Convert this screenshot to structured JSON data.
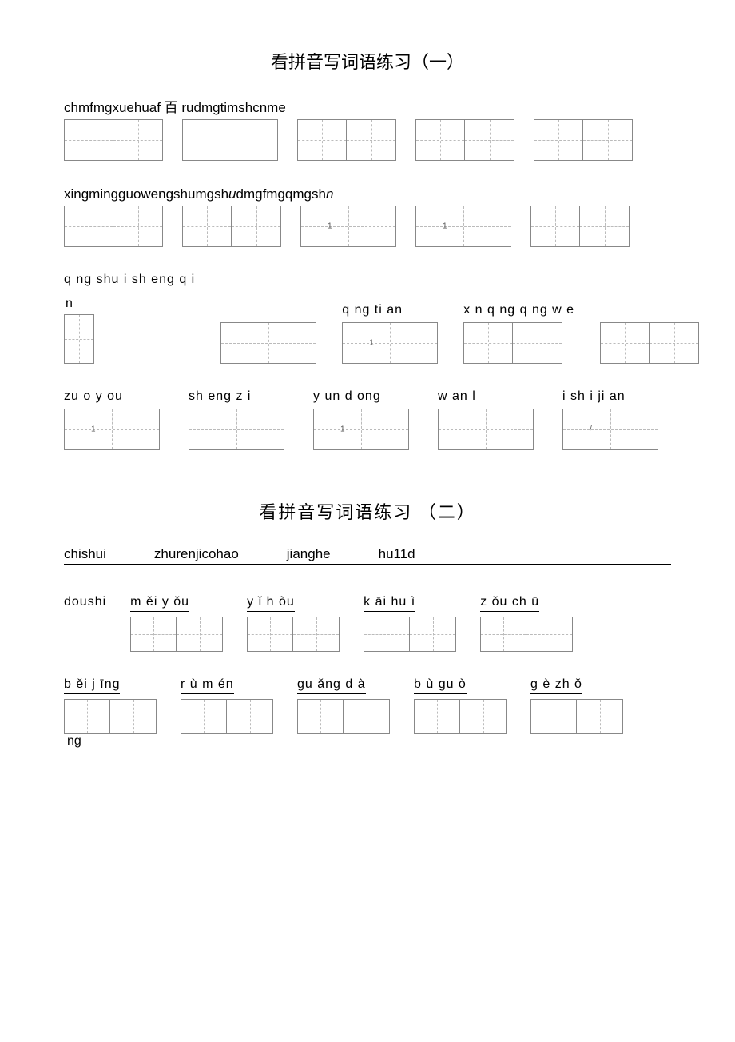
{
  "section1": {
    "title": "看拼音写词语练习（一）",
    "row1": {
      "pinyin_line": "chmfmgxuehuaf 百 rudmgtimshcnme",
      "boxes": [
        {
          "cells": 2,
          "style": "tian",
          "size": "sz-lg"
        },
        {
          "cells": 1,
          "style": "plain-box",
          "size": "sz-wide"
        },
        {
          "cells": 2,
          "style": "tian",
          "size": "sz-lg"
        },
        {
          "cells": 2,
          "style": "tian",
          "size": "sz-lg"
        },
        {
          "cells": 2,
          "style": "tian",
          "size": "sz-lg"
        }
      ]
    },
    "row2": {
      "pinyin_line": "xingmingguowengshumgsh<i>u</i>dmgfmgqmgsh<i>n</i>",
      "boxes": [
        {
          "cells": 2,
          "style": "tian",
          "size": "sz-lg"
        },
        {
          "cells": 2,
          "style": "tian",
          "size": "sz-lg"
        },
        {
          "cells": 1,
          "style": "divider-box",
          "size": "sz-wide",
          "marker": "1"
        },
        {
          "cells": 1,
          "style": "divider-box",
          "size": "sz-wide",
          "marker": "1"
        },
        {
          "cells": 2,
          "style": "tian",
          "size": "sz-lg"
        }
      ]
    },
    "row3": {
      "groups": [
        {
          "label": "q ng shu i sh eng q i",
          "extra_label": "n",
          "box": {
            "cells": 1,
            "style": "divider-box",
            "size": "sz-nar"
          }
        },
        {
          "label": "",
          "box": {
            "cells": 1,
            "style": "divider-box",
            "size": "sz-wide",
            "marker": ""
          }
        },
        {
          "label": "q ng ti an",
          "box": {
            "cells": 1,
            "style": "divider-box",
            "size": "sz-wide",
            "marker": "1"
          }
        },
        {
          "label": "x n q ng q ng w e",
          "box": {
            "cells": 2,
            "style": "tian",
            "size": "sz-lg"
          }
        },
        {
          "label": "",
          "box": {
            "cells": 2,
            "style": "tian",
            "size": "sz-lg"
          }
        }
      ]
    },
    "row4": {
      "groups": [
        {
          "label": "zu o y ou",
          "box": {
            "cells": 1,
            "style": "divider-box",
            "size": "sz-wide",
            "marker": "1"
          }
        },
        {
          "label": "sh eng z i",
          "box": {
            "cells": 1,
            "style": "divider-box",
            "size": "sz-wide"
          }
        },
        {
          "label": "y un d ong",
          "box": {
            "cells": 1,
            "style": "divider-box",
            "size": "sz-wide",
            "marker": "1"
          }
        },
        {
          "label": "w an l",
          "box": {
            "cells": 1,
            "style": "divider-box",
            "size": "sz-wide"
          }
        },
        {
          "label": "i sh i ji an",
          "box": {
            "cells": 1,
            "style": "divider-box",
            "size": "sz-wide",
            "marker": "/"
          }
        }
      ]
    }
  },
  "section2": {
    "title": "看拼音写词语练习 （二）",
    "line1": [
      "chishui",
      "zhurenjicohao",
      "jianghe",
      "hu11d"
    ],
    "row1": {
      "groups": [
        {
          "label": "doushi",
          "box": null
        },
        {
          "label": "m ěi y ǒu",
          "underline": true,
          "box": {
            "cells": 2,
            "style": "tian",
            "size": "sz-md"
          }
        },
        {
          "label": "y ǐ  h òu",
          "underline": true,
          "box": {
            "cells": 2,
            "style": "tian",
            "size": "sz-md"
          }
        },
        {
          "label": "k āi   hu ì",
          "underline": true,
          "box": {
            "cells": 2,
            "style": "tian",
            "size": "sz-md"
          }
        },
        {
          "label": "z ǒu    ch ū",
          "underline": true,
          "box": {
            "cells": 2,
            "style": "tian",
            "size": "sz-md"
          }
        }
      ]
    },
    "row2": {
      "groups": [
        {
          "label": "b ěi   j īng",
          "underline": true,
          "overflow": "ng",
          "box": {
            "cells": 2,
            "style": "tian",
            "size": "sz-md"
          }
        },
        {
          "label": "r ù   m én",
          "underline": true,
          "box": {
            "cells": 2,
            "style": "tian",
            "size": "sz-md"
          }
        },
        {
          "label": "gu ǎng d  à",
          "underline": true,
          "box": {
            "cells": 2,
            "style": "tian",
            "size": "sz-md"
          }
        },
        {
          "label": "b ù gu ò",
          "underline": true,
          "box": {
            "cells": 2,
            "style": "tian",
            "size": "sz-md"
          }
        },
        {
          "label": "g è zh ǒ",
          "underline": true,
          "box": {
            "cells": 2,
            "style": "tian",
            "size": "sz-md"
          }
        }
      ]
    }
  },
  "colors": {
    "text": "#000000",
    "border": "#888888",
    "dash": "#bbbbbb",
    "background": "#ffffff"
  }
}
